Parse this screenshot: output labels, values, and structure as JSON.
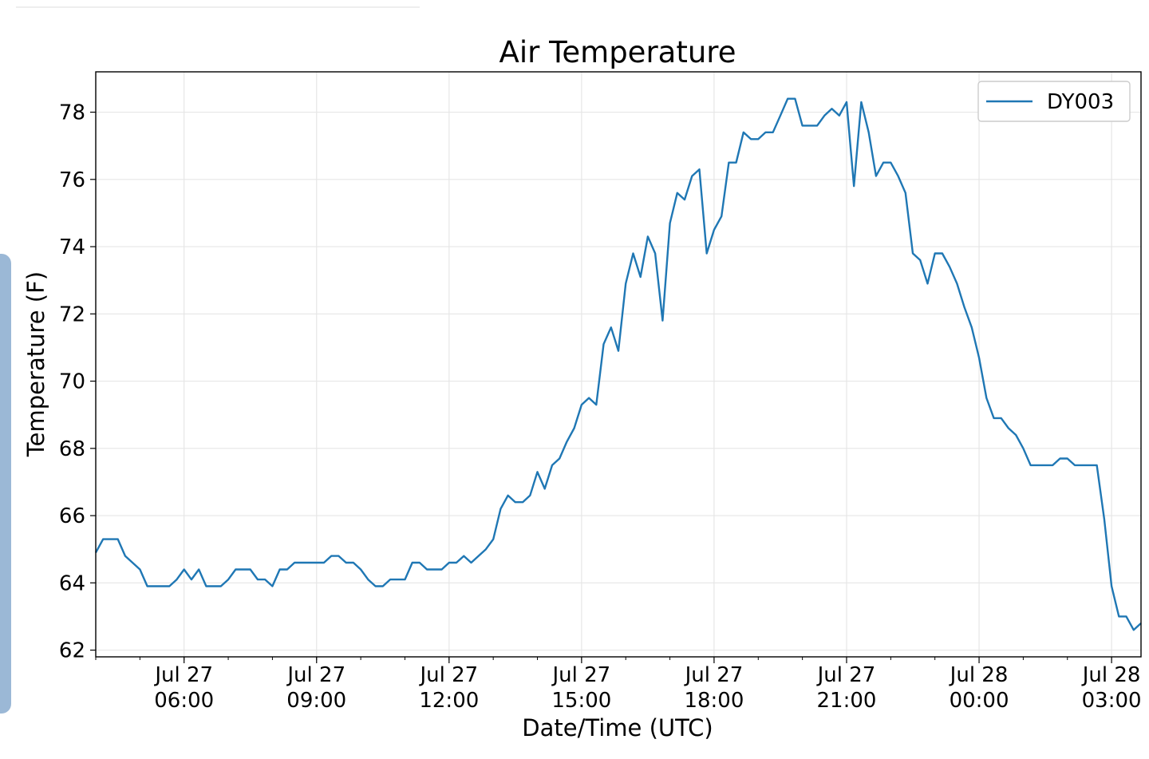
{
  "chart_data": {
    "type": "line",
    "title": "Air Temperature",
    "xlabel": "Date/Time (UTC)",
    "ylabel": "Temperature (F)",
    "x_range": [
      "2020-07-27 04:00",
      "2020-07-28 03:40"
    ],
    "ylim": [
      61.8,
      79.2
    ],
    "grid": true,
    "legend_position": "upper right",
    "series_color": "#1f77b4",
    "x_ticks": [
      {
        "time": "2020-07-27 06:00",
        "label_line1": "Jul 27",
        "label_line2": "06:00"
      },
      {
        "time": "2020-07-27 09:00",
        "label_line1": "Jul 27",
        "label_line2": "09:00"
      },
      {
        "time": "2020-07-27 12:00",
        "label_line1": "Jul 27",
        "label_line2": "12:00"
      },
      {
        "time": "2020-07-27 15:00",
        "label_line1": "Jul 27",
        "label_line2": "15:00"
      },
      {
        "time": "2020-07-27 18:00",
        "label_line1": "Jul 27",
        "label_line2": "18:00"
      },
      {
        "time": "2020-07-27 21:00",
        "label_line1": "Jul 27",
        "label_line2": "21:00"
      },
      {
        "time": "2020-07-28 00:00",
        "label_line1": "Jul 28",
        "label_line2": "00:00"
      },
      {
        "time": "2020-07-28 03:00",
        "label_line1": "Jul 28",
        "label_line2": "03:00"
      }
    ],
    "y_ticks": [
      62,
      64,
      66,
      68,
      70,
      72,
      74,
      76,
      78
    ],
    "series": [
      {
        "name": "DY003",
        "points": [
          [
            "2020-07-27 04:00",
            64.9
          ],
          [
            "2020-07-27 04:10",
            65.3
          ],
          [
            "2020-07-27 04:20",
            65.3
          ],
          [
            "2020-07-27 04:30",
            65.3
          ],
          [
            "2020-07-27 04:40",
            64.8
          ],
          [
            "2020-07-27 04:50",
            64.6
          ],
          [
            "2020-07-27 05:00",
            64.4
          ],
          [
            "2020-07-27 05:10",
            63.9
          ],
          [
            "2020-07-27 05:20",
            63.9
          ],
          [
            "2020-07-27 05:30",
            63.9
          ],
          [
            "2020-07-27 05:40",
            63.9
          ],
          [
            "2020-07-27 05:50",
            64.1
          ],
          [
            "2020-07-27 06:00",
            64.4
          ],
          [
            "2020-07-27 06:10",
            64.1
          ],
          [
            "2020-07-27 06:20",
            64.4
          ],
          [
            "2020-07-27 06:30",
            63.9
          ],
          [
            "2020-07-27 06:40",
            63.9
          ],
          [
            "2020-07-27 06:50",
            63.9
          ],
          [
            "2020-07-27 07:00",
            64.1
          ],
          [
            "2020-07-27 07:10",
            64.4
          ],
          [
            "2020-07-27 07:20",
            64.4
          ],
          [
            "2020-07-27 07:30",
            64.4
          ],
          [
            "2020-07-27 07:40",
            64.1
          ],
          [
            "2020-07-27 07:50",
            64.1
          ],
          [
            "2020-07-27 08:00",
            63.9
          ],
          [
            "2020-07-27 08:10",
            64.4
          ],
          [
            "2020-07-27 08:20",
            64.4
          ],
          [
            "2020-07-27 08:30",
            64.6
          ],
          [
            "2020-07-27 08:40",
            64.6
          ],
          [
            "2020-07-27 08:50",
            64.6
          ],
          [
            "2020-07-27 09:00",
            64.6
          ],
          [
            "2020-07-27 09:10",
            64.6
          ],
          [
            "2020-07-27 09:20",
            64.8
          ],
          [
            "2020-07-27 09:30",
            64.8
          ],
          [
            "2020-07-27 09:40",
            64.6
          ],
          [
            "2020-07-27 09:50",
            64.6
          ],
          [
            "2020-07-27 10:00",
            64.4
          ],
          [
            "2020-07-27 10:10",
            64.1
          ],
          [
            "2020-07-27 10:20",
            63.9
          ],
          [
            "2020-07-27 10:30",
            63.9
          ],
          [
            "2020-07-27 10:40",
            64.1
          ],
          [
            "2020-07-27 10:50",
            64.1
          ],
          [
            "2020-07-27 11:00",
            64.1
          ],
          [
            "2020-07-27 11:10",
            64.6
          ],
          [
            "2020-07-27 11:20",
            64.6
          ],
          [
            "2020-07-27 11:30",
            64.4
          ],
          [
            "2020-07-27 11:40",
            64.4
          ],
          [
            "2020-07-27 11:50",
            64.4
          ],
          [
            "2020-07-27 12:00",
            64.6
          ],
          [
            "2020-07-27 12:10",
            64.6
          ],
          [
            "2020-07-27 12:20",
            64.8
          ],
          [
            "2020-07-27 12:30",
            64.6
          ],
          [
            "2020-07-27 12:40",
            64.8
          ],
          [
            "2020-07-27 12:50",
            65.0
          ],
          [
            "2020-07-27 13:00",
            65.3
          ],
          [
            "2020-07-27 13:10",
            66.2
          ],
          [
            "2020-07-27 13:20",
            66.6
          ],
          [
            "2020-07-27 13:30",
            66.4
          ],
          [
            "2020-07-27 13:40",
            66.4
          ],
          [
            "2020-07-27 13:50",
            66.6
          ],
          [
            "2020-07-27 14:00",
            67.3
          ],
          [
            "2020-07-27 14:10",
            66.8
          ],
          [
            "2020-07-27 14:20",
            67.5
          ],
          [
            "2020-07-27 14:30",
            67.7
          ],
          [
            "2020-07-27 14:40",
            68.2
          ],
          [
            "2020-07-27 14:50",
            68.6
          ],
          [
            "2020-07-27 15:00",
            69.3
          ],
          [
            "2020-07-27 15:10",
            69.5
          ],
          [
            "2020-07-27 15:20",
            69.3
          ],
          [
            "2020-07-27 15:30",
            71.1
          ],
          [
            "2020-07-27 15:40",
            71.6
          ],
          [
            "2020-07-27 15:50",
            70.9
          ],
          [
            "2020-07-27 16:00",
            72.9
          ],
          [
            "2020-07-27 16:10",
            73.8
          ],
          [
            "2020-07-27 16:20",
            73.1
          ],
          [
            "2020-07-27 16:30",
            74.3
          ],
          [
            "2020-07-27 16:40",
            73.8
          ],
          [
            "2020-07-27 16:50",
            71.8
          ],
          [
            "2020-07-27 17:00",
            74.7
          ],
          [
            "2020-07-27 17:10",
            75.6
          ],
          [
            "2020-07-27 17:20",
            75.4
          ],
          [
            "2020-07-27 17:30",
            76.1
          ],
          [
            "2020-07-27 17:40",
            76.3
          ],
          [
            "2020-07-27 17:50",
            73.8
          ],
          [
            "2020-07-27 18:00",
            74.5
          ],
          [
            "2020-07-27 18:10",
            74.9
          ],
          [
            "2020-07-27 18:20",
            76.5
          ],
          [
            "2020-07-27 18:30",
            76.5
          ],
          [
            "2020-07-27 18:40",
            77.4
          ],
          [
            "2020-07-27 18:50",
            77.2
          ],
          [
            "2020-07-27 19:00",
            77.2
          ],
          [
            "2020-07-27 19:10",
            77.4
          ],
          [
            "2020-07-27 19:20",
            77.4
          ],
          [
            "2020-07-27 19:30",
            77.9
          ],
          [
            "2020-07-27 19:40",
            78.4
          ],
          [
            "2020-07-27 19:50",
            78.4
          ],
          [
            "2020-07-27 20:00",
            77.6
          ],
          [
            "2020-07-27 20:10",
            77.6
          ],
          [
            "2020-07-27 20:20",
            77.6
          ],
          [
            "2020-07-27 20:30",
            77.9
          ],
          [
            "2020-07-27 20:40",
            78.1
          ],
          [
            "2020-07-27 20:50",
            77.9
          ],
          [
            "2020-07-27 21:00",
            78.3
          ],
          [
            "2020-07-27 21:10",
            75.8
          ],
          [
            "2020-07-27 21:20",
            78.3
          ],
          [
            "2020-07-27 21:30",
            77.4
          ],
          [
            "2020-07-27 21:40",
            76.1
          ],
          [
            "2020-07-27 21:50",
            76.5
          ],
          [
            "2020-07-27 22:00",
            76.5
          ],
          [
            "2020-07-27 22:10",
            76.1
          ],
          [
            "2020-07-27 22:20",
            75.6
          ],
          [
            "2020-07-27 22:30",
            73.8
          ],
          [
            "2020-07-27 22:40",
            73.6
          ],
          [
            "2020-07-27 22:50",
            72.9
          ],
          [
            "2020-07-27 23:00",
            73.8
          ],
          [
            "2020-07-27 23:10",
            73.8
          ],
          [
            "2020-07-27 23:20",
            73.4
          ],
          [
            "2020-07-27 23:30",
            72.9
          ],
          [
            "2020-07-27 23:40",
            72.2
          ],
          [
            "2020-07-27 23:50",
            71.6
          ],
          [
            "2020-07-28 00:00",
            70.7
          ],
          [
            "2020-07-28 00:10",
            69.5
          ],
          [
            "2020-07-28 00:20",
            68.9
          ],
          [
            "2020-07-28 00:30",
            68.9
          ],
          [
            "2020-07-28 00:40",
            68.6
          ],
          [
            "2020-07-28 00:50",
            68.4
          ],
          [
            "2020-07-28 01:00",
            68.0
          ],
          [
            "2020-07-28 01:10",
            67.5
          ],
          [
            "2020-07-28 01:20",
            67.5
          ],
          [
            "2020-07-28 01:30",
            67.5
          ],
          [
            "2020-07-28 01:40",
            67.5
          ],
          [
            "2020-07-28 01:50",
            67.7
          ],
          [
            "2020-07-28 02:00",
            67.7
          ],
          [
            "2020-07-28 02:10",
            67.5
          ],
          [
            "2020-07-28 02:20",
            67.5
          ],
          [
            "2020-07-28 02:30",
            67.5
          ],
          [
            "2020-07-28 02:40",
            67.5
          ],
          [
            "2020-07-28 02:50",
            65.9
          ],
          [
            "2020-07-28 03:00",
            63.9
          ],
          [
            "2020-07-28 03:10",
            63.0
          ],
          [
            "2020-07-28 03:20",
            63.0
          ],
          [
            "2020-07-28 03:30",
            62.6
          ],
          [
            "2020-07-28 03:40",
            62.8
          ]
        ]
      }
    ]
  }
}
